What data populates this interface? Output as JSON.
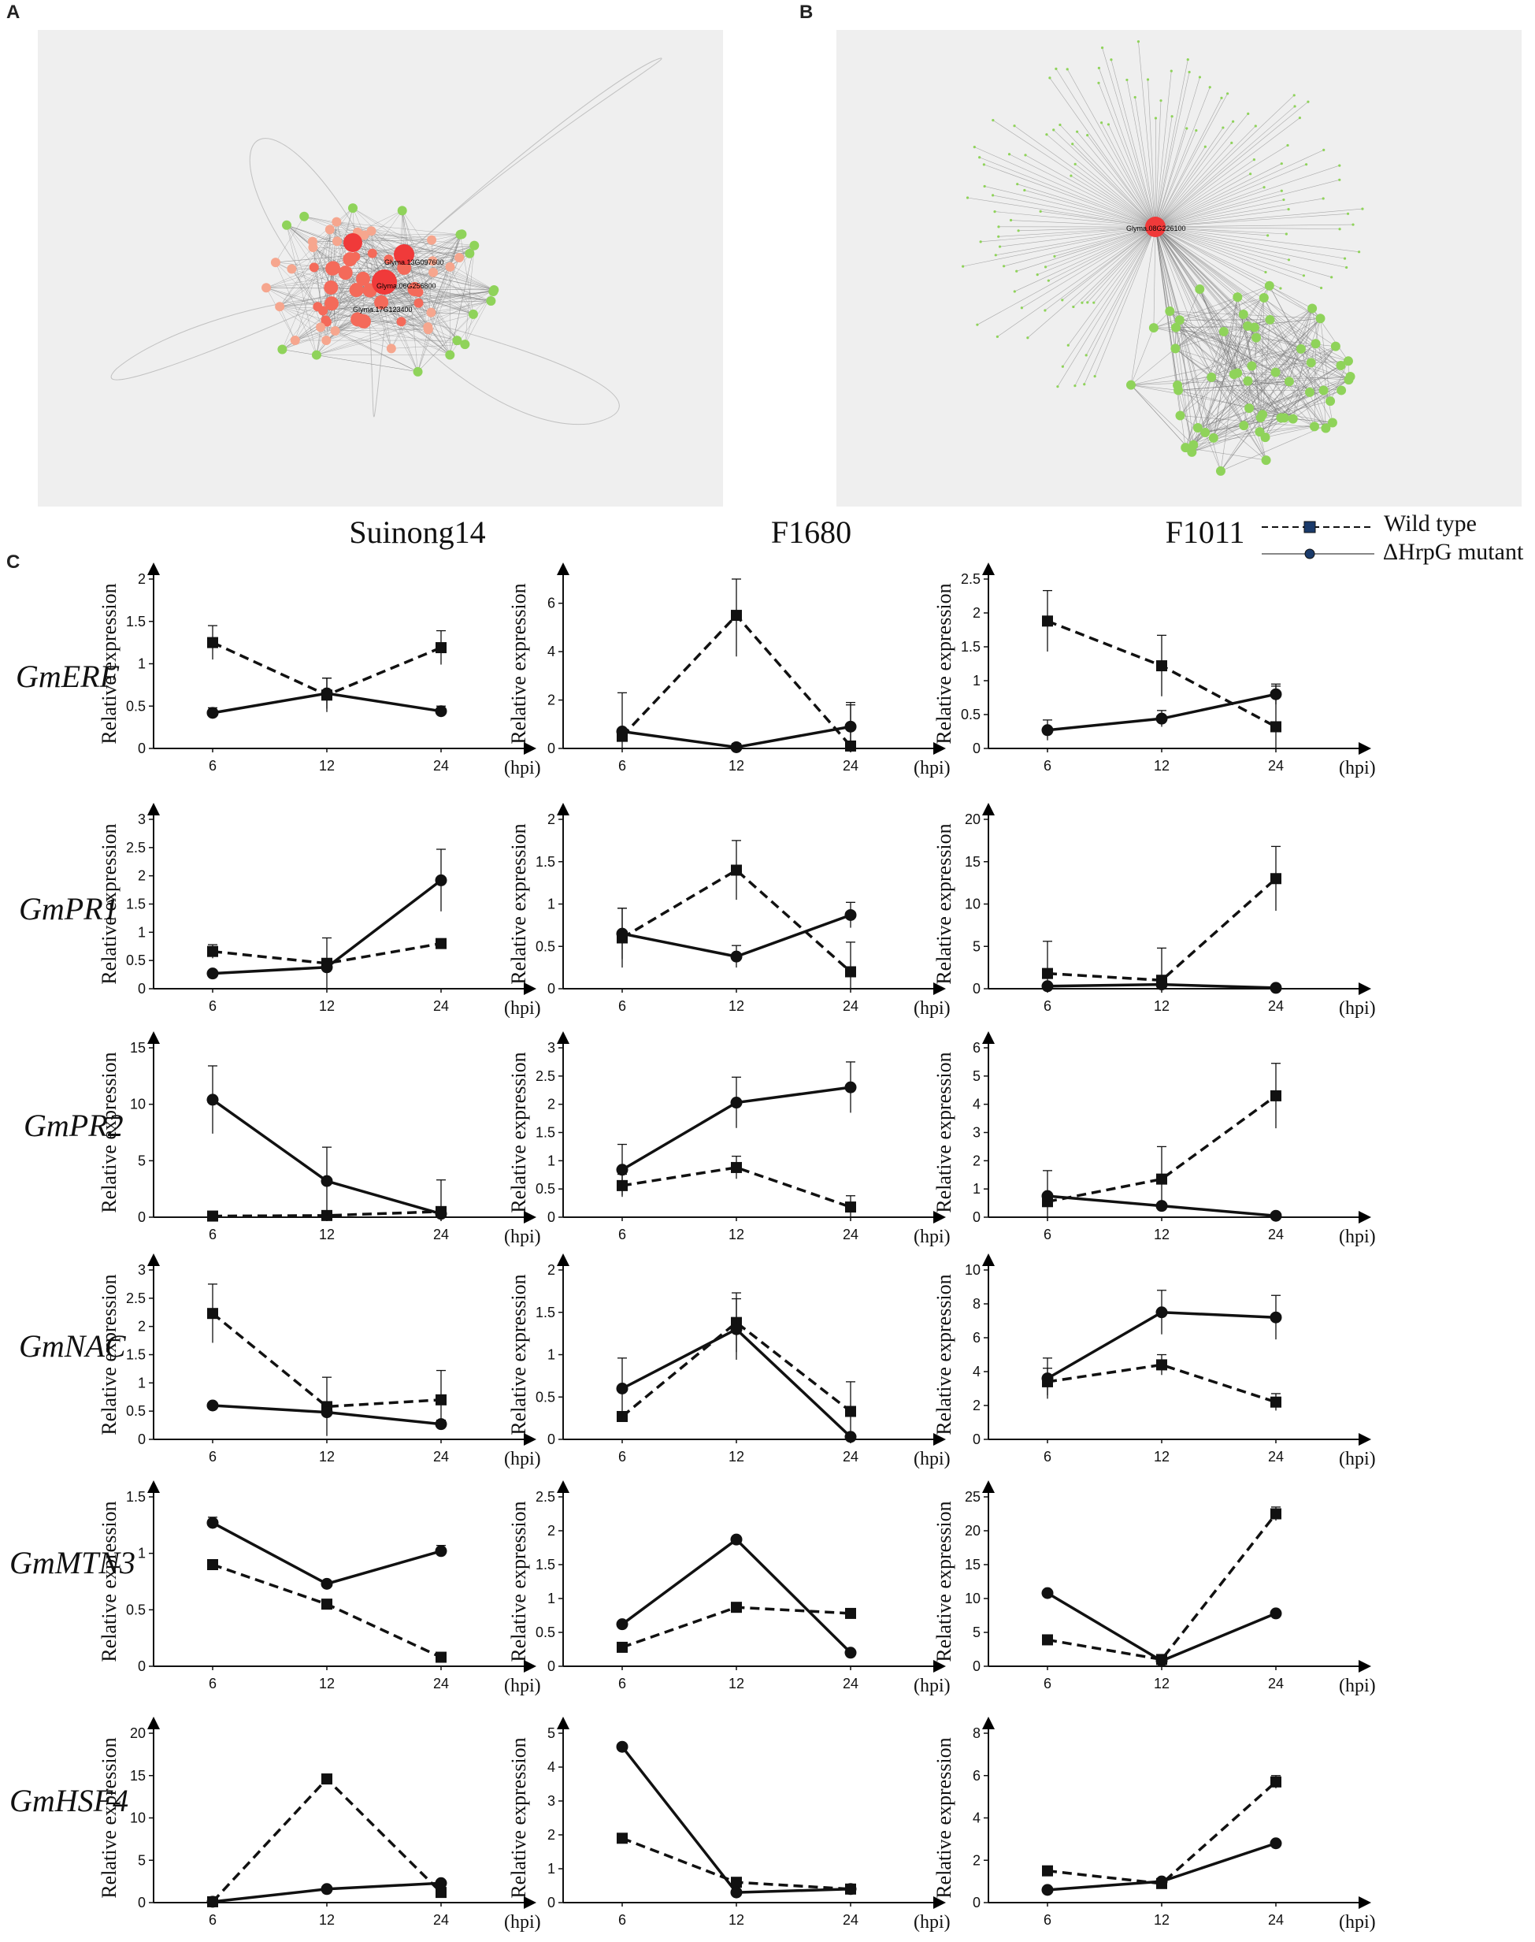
{
  "panels": {
    "a": "A",
    "b": "B",
    "c": "C"
  },
  "cultivars": [
    "Suinong14",
    "F1680",
    "F1011"
  ],
  "legend": {
    "wild_type": "Wild type",
    "mutant": "ΔHrpG mutant"
  },
  "network_a": {
    "hub_labels": [
      "Glyma.06G256800",
      "Glyma.13G097600",
      "Glyma.17G123400"
    ]
  },
  "network_b": {
    "hub_label": "Glyma.08G226100"
  },
  "colors": {
    "hub": "#f03a3a",
    "node_red": "#f46a5a",
    "node_orange": "#f6a68e",
    "node_green": "#8fd35a",
    "edge": "#7a7a7a",
    "net_bg": "#efefef"
  },
  "genes": [
    "GmERF",
    "GmPR1",
    "GmPR2",
    "GmNAC",
    "GmMTN3",
    "GmHSF4"
  ],
  "axis": {
    "ylabel": "Relative expression",
    "unit": "(hpi)",
    "x": [
      "6",
      "12",
      "24"
    ]
  },
  "chart_data": [
    {
      "type": "line",
      "gene": "GmERF",
      "cultivar": "Suinong14",
      "ymax": 2,
      "yticks": [
        "0",
        "0.5",
        "1",
        "1.5",
        "2"
      ],
      "series": [
        {
          "name": "Wild type",
          "values": [
            1.25,
            0.63,
            1.19
          ],
          "err": [
            0.2,
            0.2,
            0.2
          ]
        },
        {
          "name": "ΔHrpG mutant",
          "values": [
            0.42,
            0.65,
            0.44
          ],
          "err": [
            0.06,
            0.18,
            0.06
          ]
        }
      ]
    },
    {
      "type": "line",
      "gene": "GmERF",
      "cultivar": "F1680",
      "ymax": 7,
      "yticks": [
        "0",
        "2",
        "4",
        "6"
      ],
      "series": [
        {
          "name": "Wild type",
          "values": [
            0.5,
            5.5,
            0.1
          ],
          "err": [
            1.8,
            1.7,
            1.7
          ]
        },
        {
          "name": "ΔHrpG mutant",
          "values": [
            0.7,
            0.05,
            0.9
          ],
          "err": [
            0,
            0.15,
            1
          ]
        }
      ]
    },
    {
      "type": "line",
      "gene": "GmERF",
      "cultivar": "F1011",
      "ymax": 2.5,
      "yticks": [
        "0",
        "0.5",
        "1",
        "1.5",
        "2",
        "2.5"
      ],
      "series": [
        {
          "name": "Wild type",
          "values": [
            1.88,
            1.22,
            0.32
          ],
          "err": [
            0.45,
            0.45,
            0.6
          ]
        },
        {
          "name": "ΔHrpG mutant",
          "values": [
            0.27,
            0.44,
            0.8
          ],
          "err": [
            0.15,
            0.12,
            0.15
          ]
        }
      ]
    },
    {
      "type": "line",
      "gene": "GmPR1",
      "cultivar": "Suinong14",
      "ymax": 3,
      "yticks": [
        "0",
        "0.5",
        "1",
        "1.5",
        "2",
        "2.5",
        "3"
      ],
      "series": [
        {
          "name": "Wild type",
          "values": [
            0.66,
            0.45,
            0.8
          ],
          "err": [
            0.12,
            0.45,
            0.08
          ]
        },
        {
          "name": "ΔHrpG mutant",
          "values": [
            0.27,
            0.38,
            1.92
          ],
          "err": [
            0.03,
            0.05,
            0.55
          ]
        }
      ]
    },
    {
      "type": "line",
      "gene": "GmPR1",
      "cultivar": "F1680",
      "ymax": 2,
      "yticks": [
        "0",
        "0.5",
        "1",
        "1.5",
        "2"
      ],
      "series": [
        {
          "name": "Wild type",
          "values": [
            0.6,
            1.4,
            0.2
          ],
          "err": [
            0.35,
            0.35,
            0.35
          ]
        },
        {
          "name": "ΔHrpG mutant",
          "values": [
            0.65,
            0.38,
            0.87
          ],
          "err": [
            0.3,
            0.13,
            0.15
          ]
        }
      ]
    },
    {
      "type": "line",
      "gene": "GmPR1",
      "cultivar": "F1011",
      "ymax": 20,
      "yticks": [
        "0",
        "5",
        "10",
        "15",
        "20"
      ],
      "series": [
        {
          "name": "Wild type",
          "values": [
            1.8,
            1,
            13
          ],
          "err": [
            3.8,
            3.8,
            3.8
          ]
        },
        {
          "name": "ΔHrpG mutant",
          "values": [
            0.3,
            0.5,
            0.1
          ],
          "err": [
            0,
            0,
            0
          ]
        }
      ]
    },
    {
      "type": "line",
      "gene": "GmPR2",
      "cultivar": "Suinong14",
      "ymax": 15,
      "yticks": [
        "0",
        "5",
        "10",
        "15"
      ],
      "series": [
        {
          "name": "Wild type",
          "values": [
            0.1,
            0.15,
            0.5
          ],
          "err": [
            0,
            0,
            2.8
          ]
        },
        {
          "name": "ΔHrpG mutant",
          "values": [
            10.4,
            3.2,
            0.3
          ],
          "err": [
            3,
            3,
            0
          ]
        }
      ]
    },
    {
      "type": "line",
      "gene": "GmPR2",
      "cultivar": "F1680",
      "ymax": 3,
      "yticks": [
        "0",
        "0.5",
        "1",
        "1.5",
        "2",
        "2.5",
        "3"
      ],
      "series": [
        {
          "name": "Wild type",
          "values": [
            0.56,
            0.88,
            0.18
          ],
          "err": [
            0.2,
            0.2,
            0.2
          ]
        },
        {
          "name": "ΔHrpG mutant",
          "values": [
            0.84,
            2.03,
            2.3
          ],
          "err": [
            0.45,
            0.45,
            0.45
          ]
        }
      ]
    },
    {
      "type": "line",
      "gene": "GmPR2",
      "cultivar": "F1011",
      "ymax": 6,
      "yticks": [
        "0",
        "1",
        "2",
        "3",
        "4",
        "5",
        "6"
      ],
      "series": [
        {
          "name": "Wild type",
          "values": [
            0.55,
            1.35,
            4.3
          ],
          "err": [
            1.1,
            1.15,
            1.15
          ]
        },
        {
          "name": "ΔHrpG mutant",
          "values": [
            0.75,
            0.4,
            0.05
          ],
          "err": [
            0,
            0,
            0
          ]
        }
      ]
    },
    {
      "type": "line",
      "gene": "GmNAC",
      "cultivar": "Suinong14",
      "ymax": 3,
      "yticks": [
        "0",
        "0.5",
        "1",
        "1.5",
        "2",
        "2.5",
        "3"
      ],
      "series": [
        {
          "name": "Wild type",
          "values": [
            2.23,
            0.58,
            0.7
          ],
          "err": [
            0.52,
            0.52,
            0.52
          ]
        },
        {
          "name": "ΔHrpG mutant",
          "values": [
            0.6,
            0.48,
            0.27
          ],
          "err": [
            0.05,
            0,
            0.07
          ]
        }
      ]
    },
    {
      "type": "line",
      "gene": "GmNAC",
      "cultivar": "F1680",
      "ymax": 2,
      "yticks": [
        "0",
        "0.5",
        "1",
        "1.5",
        "2"
      ],
      "series": [
        {
          "name": "Wild type",
          "values": [
            0.27,
            1.38,
            0.33
          ],
          "err": [
            0,
            0.35,
            0.35
          ]
        },
        {
          "name": "ΔHrpG mutant",
          "values": [
            0.6,
            1.3,
            0.03
          ],
          "err": [
            0.36,
            0.36,
            0
          ]
        }
      ]
    },
    {
      "type": "line",
      "gene": "GmNAC",
      "cultivar": "F1011",
      "ymax": 10,
      "yticks": [
        "0",
        "2",
        "4",
        "6",
        "8",
        "10"
      ],
      "series": [
        {
          "name": "Wild type",
          "values": [
            3.4,
            4.4,
            2.2
          ],
          "err": [
            0.8,
            0.6,
            0.5
          ]
        },
        {
          "name": "ΔHrpG mutant",
          "values": [
            3.6,
            7.5,
            7.2
          ],
          "err": [
            1.2,
            1.3,
            1.3
          ]
        }
      ]
    },
    {
      "type": "line",
      "gene": "GmMTN3",
      "cultivar": "Suinong14",
      "ymax": 1.5,
      "yticks": [
        "0",
        "0.5",
        "1",
        "1.5"
      ],
      "series": [
        {
          "name": "Wild type",
          "values": [
            0.9,
            0.55,
            0.08
          ],
          "err": [
            0.02,
            0.02,
            0.02
          ]
        },
        {
          "name": "ΔHrpG mutant",
          "values": [
            1.27,
            0.73,
            1.02
          ],
          "err": [
            0.05,
            0.02,
            0.05
          ]
        }
      ]
    },
    {
      "type": "line",
      "gene": "GmMTN3",
      "cultivar": "F1680",
      "ymax": 2.5,
      "yticks": [
        "0",
        "0.5",
        "1",
        "1.5",
        "2",
        "2.5"
      ],
      "series": [
        {
          "name": "Wild type",
          "values": [
            0.28,
            0.87,
            0.78
          ],
          "err": [
            0.02,
            0.02,
            0.02
          ]
        },
        {
          "name": "ΔHrpG mutant",
          "values": [
            0.62,
            1.87,
            0.2
          ],
          "err": [
            0.02,
            0.05,
            0.02
          ]
        }
      ]
    },
    {
      "type": "line",
      "gene": "GmMTN3",
      "cultivar": "F1011",
      "ymax": 25,
      "yticks": [
        "0",
        "5",
        "10",
        "15",
        "20",
        "25"
      ],
      "series": [
        {
          "name": "Wild type",
          "values": [
            3.9,
            1,
            22.5
          ],
          "err": [
            0.2,
            0.2,
            1
          ]
        },
        {
          "name": "ΔHrpG mutant",
          "values": [
            10.8,
            0.8,
            7.8
          ],
          "err": [
            0.2,
            0.1,
            0.2
          ]
        }
      ]
    },
    {
      "type": "line",
      "gene": "GmHSF4",
      "cultivar": "Suinong14",
      "ymax": 20,
      "yticks": [
        "0",
        "5",
        "10",
        "15",
        "20"
      ],
      "series": [
        {
          "name": "Wild type",
          "values": [
            0.1,
            14.6,
            1.2
          ],
          "err": [
            0,
            0.5,
            0
          ]
        },
        {
          "name": "ΔHrpG mutant",
          "values": [
            0.1,
            1.6,
            2.3
          ],
          "err": [
            0,
            0,
            0
          ]
        }
      ]
    },
    {
      "type": "line",
      "gene": "GmHSF4",
      "cultivar": "F1680",
      "ymax": 5,
      "yticks": [
        "0",
        "1",
        "2",
        "3",
        "4",
        "5"
      ],
      "series": [
        {
          "name": "Wild type",
          "values": [
            1.9,
            0.6,
            0.4
          ],
          "err": [
            0,
            0,
            0
          ]
        },
        {
          "name": "ΔHrpG mutant",
          "values": [
            4.6,
            0.3,
            0.4
          ],
          "err": [
            0,
            0,
            0
          ]
        }
      ]
    },
    {
      "type": "line",
      "gene": "GmHSF4",
      "cultivar": "F1011",
      "ymax": 8,
      "yticks": [
        "0",
        "2",
        "4",
        "6",
        "8"
      ],
      "series": [
        {
          "name": "Wild type",
          "values": [
            1.5,
            0.9,
            5.7
          ],
          "err": [
            0,
            0,
            0.3
          ]
        },
        {
          "name": "ΔHrpG mutant",
          "values": [
            0.6,
            1,
            2.8
          ],
          "err": [
            0,
            0,
            0
          ]
        }
      ]
    }
  ]
}
